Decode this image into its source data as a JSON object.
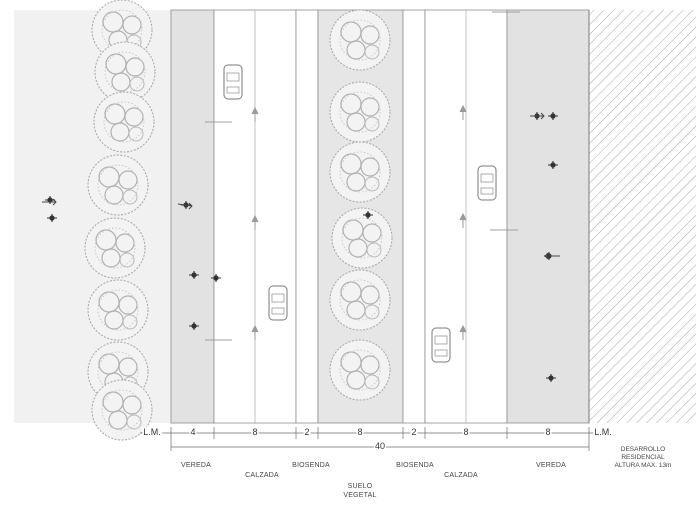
{
  "dimensions": {
    "lm_left": "L.M.",
    "vereda_left": "4",
    "calzada_left": "8",
    "biosenda_left": "2",
    "suelo_vegetal": "8",
    "biosenda_right": "2",
    "calzada_right": "8",
    "vereda_right": "8",
    "lm_right": "L.M.",
    "total": "40"
  },
  "labels": {
    "vereda_left": "VEREDA",
    "calzada_left": "CALZADA",
    "biosenda_left": "BIOSENDA",
    "suelo_vegetal_line1": "SUELO",
    "suelo_vegetal_line2": "VEGETAL",
    "biosenda_right": "BIOSENDA",
    "calzada_right": "CALZADA",
    "vereda_right": "VEREDA",
    "development_line1": "DESARROLLO",
    "development_line2": "RESIDENCIAL",
    "development_line3": "ALTURA MAX. 13m"
  },
  "colors": {
    "park": "#f1f1f1",
    "sidewalk": "#e2e2e2",
    "median": "#e6e6e6",
    "road": "#ffffff",
    "tree": "#9a9a9a",
    "hatch": "#9c9c9c"
  },
  "icons": [
    "tree-icon",
    "car-icon",
    "pedestrian-icon",
    "arrow-icon",
    "cyclist-icon"
  ]
}
